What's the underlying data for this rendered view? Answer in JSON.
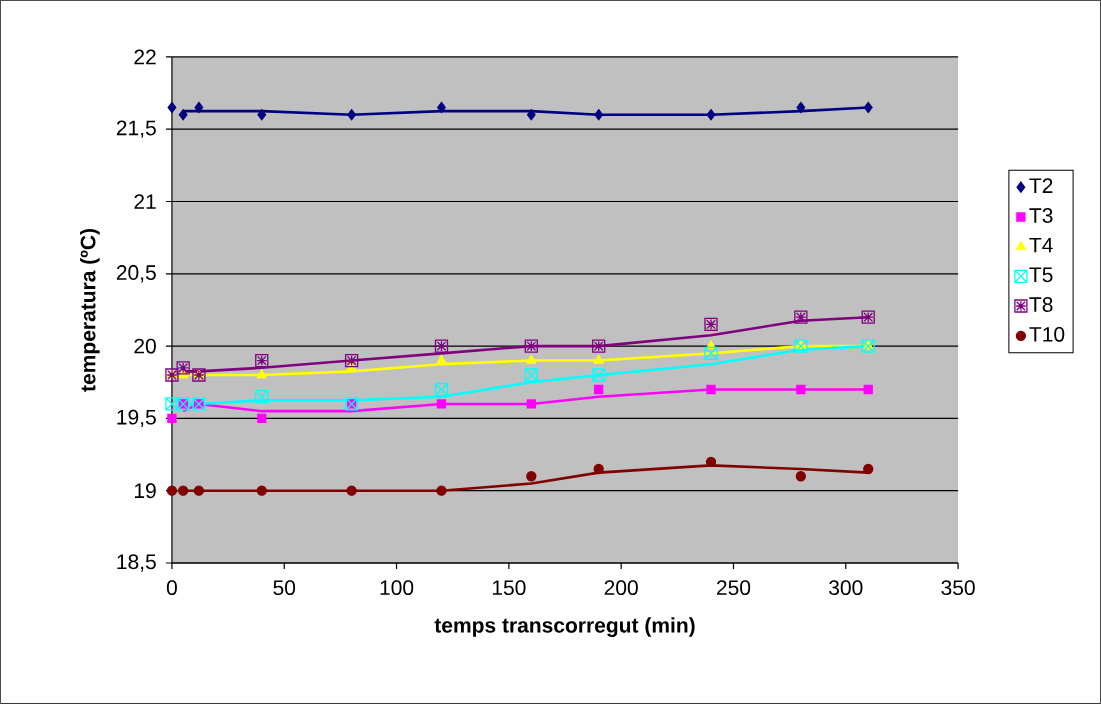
{
  "chart_data": {
    "type": "scatter",
    "xlabel": "temps transcorregut (min)",
    "ylabel": "temperatura (ºC)",
    "xlim": [
      0,
      350
    ],
    "ylim": [
      18.5,
      22
    ],
    "xticks": [
      0,
      50,
      100,
      150,
      200,
      250,
      300,
      350
    ],
    "yticks": [
      {
        "value": 18.5,
        "label": "18,5"
      },
      19,
      {
        "value": 19.5,
        "label": "19,5"
      },
      20,
      {
        "value": 20.5,
        "label": "20,5"
      },
      21,
      {
        "value": 21.5,
        "label": "21,5"
      },
      22
    ],
    "grid": "y",
    "legend": "right",
    "series": [
      {
        "type": "line",
        "marker": "none",
        "color": "#000080",
        "x": [
          5,
          12,
          40,
          80,
          120,
          160,
          190,
          240,
          280,
          310
        ],
        "values": [
          21.625,
          21.625,
          21.625,
          21.6,
          21.625,
          21.625,
          21.6,
          21.6,
          21.625,
          21.65
        ]
      },
      {
        "type": "line",
        "marker": "none",
        "color": "#ff00ff",
        "x": [
          5,
          12,
          40,
          80,
          120,
          160,
          190,
          240,
          280,
          310
        ],
        "values": [
          19.55,
          19.6,
          19.55,
          19.55,
          19.6,
          19.6,
          19.65,
          19.7,
          19.7,
          19.7
        ]
      },
      {
        "type": "line",
        "marker": "none",
        "color": "#ffff00",
        "x": [
          5,
          12,
          40,
          80,
          120,
          160,
          190,
          240,
          280,
          310
        ],
        "values": [
          19.8,
          19.8,
          19.8,
          19.825,
          19.875,
          19.9,
          19.9,
          19.95,
          20.0,
          20.0
        ]
      },
      {
        "type": "line",
        "marker": "none",
        "color": "#00ffff",
        "x": [
          5,
          12,
          40,
          80,
          120,
          160,
          190,
          240,
          280,
          310
        ],
        "values": [
          19.6,
          19.6,
          19.625,
          19.625,
          19.65,
          19.75,
          19.8,
          19.875,
          19.975,
          20.0
        ]
      },
      {
        "type": "line",
        "marker": "none",
        "color": "#800080",
        "x": [
          5,
          12,
          40,
          80,
          120,
          160,
          190,
          240,
          280,
          310
        ],
        "values": [
          19.825,
          19.825,
          19.85,
          19.9,
          19.95,
          20.0,
          20.0,
          20.075,
          20.175,
          20.2
        ]
      },
      {
        "type": "line",
        "marker": "none",
        "color": "#800000",
        "x": [
          5,
          12,
          40,
          80,
          120,
          160,
          190,
          240,
          280,
          310
        ],
        "values": [
          19.0,
          19.0,
          19.0,
          19.0,
          19.0,
          19.05,
          19.125,
          19.175,
          19.15,
          19.125
        ]
      },
      {
        "type": "scatter",
        "name": "T2",
        "marker": "diamond",
        "color": "#000080",
        "x": [
          0,
          5,
          12,
          40,
          80,
          120,
          160,
          190,
          240,
          280,
          310
        ],
        "values": [
          21.65,
          21.6,
          21.65,
          21.6,
          21.6,
          21.65,
          21.6,
          21.6,
          21.6,
          21.65,
          21.65
        ]
      },
      {
        "type": "scatter",
        "name": "T3",
        "marker": "square",
        "color": "#ff00ff",
        "x": [
          0,
          5,
          12,
          40,
          80,
          120,
          160,
          190,
          240,
          280,
          310
        ],
        "values": [
          19.5,
          19.6,
          19.6,
          19.5,
          19.6,
          19.6,
          19.6,
          19.7,
          19.7,
          19.7,
          19.7
        ]
      },
      {
        "type": "scatter",
        "name": "T4",
        "marker": "triangle",
        "color": "#ffff00",
        "x": [
          0,
          5,
          12,
          40,
          80,
          120,
          160,
          190,
          240,
          280,
          310
        ],
        "values": [
          19.8,
          19.8,
          19.8,
          19.8,
          19.85,
          19.9,
          19.9,
          19.9,
          20.0,
          20.0,
          20.0
        ]
      },
      {
        "type": "scatter",
        "name": "T5",
        "marker": "cross",
        "color": "#00ffff",
        "x": [
          0,
          5,
          12,
          40,
          80,
          120,
          160,
          190,
          240,
          280,
          310
        ],
        "values": [
          19.6,
          19.6,
          19.6,
          19.65,
          19.6,
          19.7,
          19.8,
          19.8,
          19.95,
          20.0,
          20.0
        ]
      },
      {
        "type": "scatter",
        "name": "T8",
        "marker": "cross",
        "color": "#800080",
        "x": [
          0,
          5,
          12,
          40,
          80,
          120,
          160,
          190,
          240,
          280,
          310
        ],
        "values": [
          19.8,
          19.85,
          19.8,
          19.9,
          19.9,
          20.0,
          20.0,
          20.0,
          20.15,
          20.2,
          20.2
        ]
      },
      {
        "type": "scatter",
        "name": "T10",
        "marker": "circle",
        "color": "#800000",
        "x": [
          0,
          5,
          12,
          40,
          80,
          120,
          160,
          190,
          240,
          280,
          310
        ],
        "values": [
          19.0,
          19.0,
          19.0,
          19.0,
          19.0,
          19.0,
          19.1,
          19.15,
          19.2,
          19.1,
          19.15
        ]
      }
    ]
  }
}
